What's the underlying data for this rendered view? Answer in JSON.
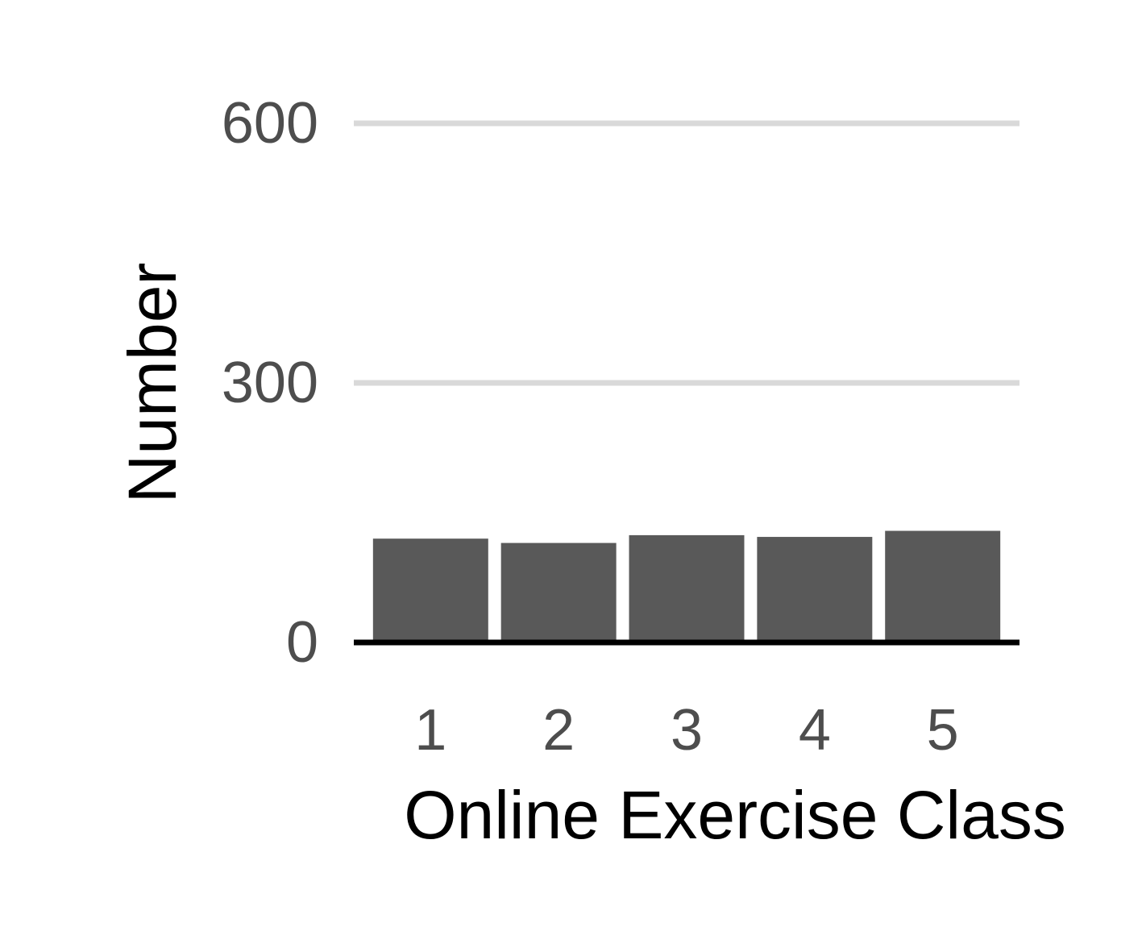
{
  "chart_data": {
    "type": "bar",
    "title": "",
    "xlabel": "Online Exercise Class",
    "ylabel": "Number",
    "categories": [
      "1",
      "2",
      "3",
      "4",
      "5"
    ],
    "values": [
      120,
      115,
      124,
      122,
      129
    ],
    "ylim": [
      0,
      600
    ],
    "yticks": [
      0,
      300,
      600
    ],
    "ytick_labels": [
      "0",
      "300",
      "600"
    ],
    "grid": "horizontal major gridlines",
    "legend": "none",
    "colors": {
      "bar": "#595959",
      "grid": "#d9d9d9",
      "baseline": "#000000",
      "tick_text": "#4d4d4d",
      "title_text": "#000000"
    }
  }
}
